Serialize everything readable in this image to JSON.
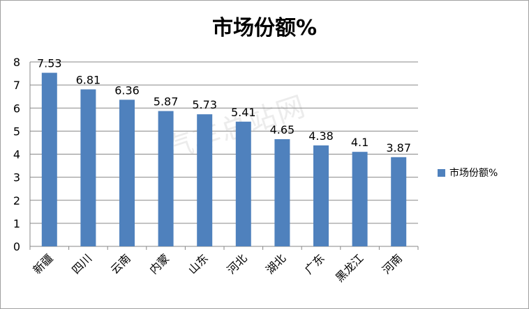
{
  "chart_data": {
    "type": "bar",
    "title": "市场份额%",
    "categories": [
      "新疆",
      "四川",
      "云南",
      "内蒙",
      "山东",
      "河北",
      "湖北",
      "广东",
      "黑龙江",
      "河南"
    ],
    "series": [
      {
        "name": "市场份额%",
        "values": [
          7.53,
          6.81,
          6.36,
          5.87,
          5.73,
          5.41,
          4.65,
          4.38,
          4.1,
          3.87
        ]
      }
    ],
    "data_labels": [
      "7.53",
      "6.81",
      "6.36",
      "5.87",
      "5.73",
      "5.41",
      "4.65",
      "4.38",
      "4.1",
      "3.87"
    ],
    "ylim": [
      0,
      8
    ],
    "yticks": [
      "0",
      "1",
      "2",
      "3",
      "4",
      "5",
      "6",
      "7",
      "8"
    ],
    "grid": true,
    "legend": "right",
    "bar_color": "#4f81bd",
    "watermark": "汽车总站网"
  }
}
